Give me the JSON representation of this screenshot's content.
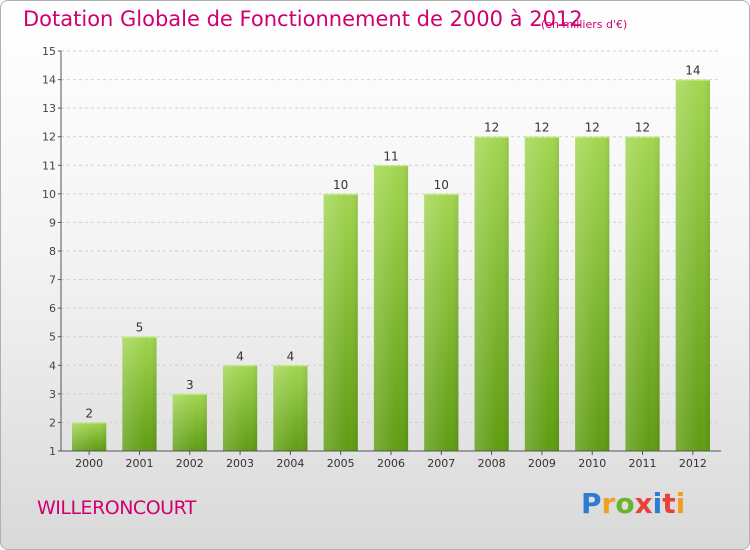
{
  "title": "Dotation Globale de Fonctionnement de 2000 à 2012",
  "subtitle": "(en milliers d'€)",
  "commune": "WILLERONCOURT",
  "logo": {
    "text": "Proxiti",
    "colors": [
      "#2e7bd1",
      "#f0a020",
      "#6ab42d",
      "#e8403a",
      "#2e7bd1",
      "#e8403a",
      "#f0a020"
    ]
  },
  "colors": {
    "title": "#d0006f",
    "bar_light": "#9fd44f",
    "bar_dark": "#5e9c12"
  },
  "chart_data": {
    "type": "bar",
    "categories": [
      "2000",
      "2001",
      "2002",
      "2003",
      "2004",
      "2005",
      "2006",
      "2007",
      "2008",
      "2009",
      "2010",
      "2011",
      "2012"
    ],
    "values": [
      2,
      5,
      3,
      4,
      4,
      10,
      11,
      10,
      12,
      12,
      12,
      12,
      14
    ],
    "ylim": [
      1,
      15
    ],
    "yticks": [
      1,
      2,
      3,
      4,
      5,
      6,
      7,
      8,
      9,
      10,
      11,
      12,
      13,
      14,
      15
    ],
    "grid": true
  }
}
